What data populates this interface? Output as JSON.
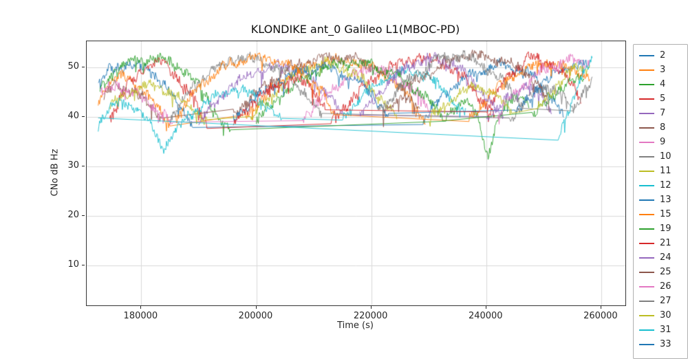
{
  "chart_data": {
    "type": "line",
    "title": "KLONDIKE ant_0 Galileo L1(MBOC-PD)",
    "xlabel": "Time (s)",
    "ylabel": "CNo dB Hz",
    "xlim": [
      170500,
      264200
    ],
    "ylim": [
      1.9,
      55.3
    ],
    "xticks": [
      180000,
      200000,
      220000,
      240000,
      260000
    ],
    "yticks": [
      10,
      20,
      30,
      40,
      50
    ],
    "grid": true,
    "legend_position": "right",
    "series": [
      {
        "name": "2",
        "color": "#1f77b4",
        "arcs": [
          [
            [
              172500,
              46.5
            ],
            [
              174500,
              49.5
            ],
            [
              178000,
              50.8
            ],
            [
              181500,
              49.5
            ],
            [
              185000,
              45
            ],
            [
              187500,
              41
            ],
            [
              189000,
              38.5
            ]
          ],
          [
            [
              229000,
              39
            ],
            [
              233000,
              45
            ],
            [
              238000,
              49
            ],
            [
              243000,
              50.5
            ],
            [
              248000,
              48.5
            ],
            [
              251500,
              44
            ],
            [
              253500,
              40
            ]
          ]
        ]
      },
      {
        "name": "3",
        "color": "#ff7f0e",
        "arcs": [
          [
            [
              172500,
              43.5
            ],
            [
              174500,
              47
            ],
            [
              177000,
              48.2
            ],
            [
              179500,
              46.5
            ],
            [
              182500,
              42.5
            ],
            [
              185000,
              39
            ]
          ],
          [
            [
              198000,
              40
            ],
            [
              203000,
              46
            ],
            [
              208000,
              50
            ],
            [
              213000,
              51.5
            ],
            [
              218000,
              51
            ],
            [
              223000,
              48
            ],
            [
              227000,
              43.5
            ],
            [
              229500,
              39.5
            ]
          ]
        ]
      },
      {
        "name": "4",
        "color": "#2ca02c",
        "arcs": [
          [
            [
              172800,
              45.5
            ],
            [
              175000,
              49
            ],
            [
              178500,
              51.5
            ],
            [
              183000,
              52
            ],
            [
              187000,
              50
            ],
            [
              191000,
              45
            ],
            [
              194000,
              39
            ],
            [
              195500,
              36.5
            ]
          ],
          [
            [
              233000,
              39.5
            ],
            [
              236500,
              44
            ],
            [
              238500,
              40
            ],
            [
              240300,
              31.5
            ],
            [
              241500,
              38
            ],
            [
              243500,
              42.5
            ],
            [
              246000,
              44
            ],
            [
              247500,
              43
            ]
          ]
        ]
      },
      {
        "name": "5",
        "color": "#d62728",
        "arcs": [
          [
            [
              174500,
              40
            ],
            [
              177500,
              46
            ],
            [
              180500,
              50
            ],
            [
              183500,
              51.2
            ],
            [
              186500,
              48
            ],
            [
              189500,
              43
            ],
            [
              191500,
              38.5
            ]
          ],
          [
            [
              213000,
              39
            ],
            [
              218000,
              45.5
            ],
            [
              223000,
              50
            ],
            [
              228000,
              52
            ],
            [
              232500,
              51
            ],
            [
              236500,
              47.5
            ],
            [
              239500,
              43
            ],
            [
              241500,
              39.5
            ]
          ]
        ]
      },
      {
        "name": "7",
        "color": "#9467bd",
        "arcs": [
          [
            [
              190000,
              39
            ],
            [
              194500,
              45
            ],
            [
              199500,
              49
            ],
            [
              204500,
              50.5
            ],
            [
              208500,
              49
            ],
            [
              212500,
              44.5
            ],
            [
              215500,
              39.5
            ]
          ],
          [
            [
              240000,
              39.5
            ],
            [
              244000,
              44
            ],
            [
              247000,
              46.5
            ],
            [
              249500,
              44.5
            ],
            [
              251500,
              41
            ]
          ]
        ]
      },
      {
        "name": "8",
        "color": "#8c564b",
        "arcs": [
          [
            [
              173500,
              44
            ],
            [
              175500,
              46.5
            ],
            [
              178500,
              45.5
            ],
            [
              181500,
              42.5
            ],
            [
              183500,
              40
            ]
          ],
          [
            [
              196000,
              40.5
            ],
            [
              201000,
              46
            ],
            [
              206000,
              50
            ],
            [
              211000,
              52
            ],
            [
              216000,
              52
            ],
            [
              221000,
              50
            ],
            [
              225500,
              46
            ],
            [
              228500,
              41
            ]
          ]
        ]
      },
      {
        "name": "9",
        "color": "#e377c2",
        "arcs": [
          [
            [
              173000,
              45
            ],
            [
              176000,
              46.5
            ],
            [
              180000,
              44
            ],
            [
              183500,
              41
            ],
            [
              185500,
              38.5
            ]
          ],
          [
            [
              208000,
              39.5
            ],
            [
              212000,
              44.5
            ],
            [
              216000,
              48
            ],
            [
              220000,
              50
            ],
            [
              224000,
              49
            ],
            [
              227500,
              45.5
            ],
            [
              230500,
              40.5
            ]
          ]
        ]
      },
      {
        "name": "10",
        "color": "#7f7f7f",
        "arcs": [
          [
            [
              185000,
              40
            ],
            [
              189000,
              46
            ],
            [
              193000,
              50
            ],
            [
              197000,
              52
            ],
            [
              201000,
              51.5
            ],
            [
              205000,
              49
            ],
            [
              208500,
              45
            ],
            [
              211500,
              40
            ]
          ],
          [
            [
              244000,
              39.5
            ],
            [
              247500,
              44
            ],
            [
              250500,
              46.5
            ],
            [
              253000,
              44.5
            ],
            [
              255500,
              41
            ]
          ]
        ]
      },
      {
        "name": "11",
        "color": "#bcbd22",
        "arcs": [
          [
            [
              174500,
              42
            ],
            [
              177500,
              45
            ],
            [
              181000,
              46.5
            ],
            [
              185000,
              45
            ],
            [
              188500,
              42
            ],
            [
              191500,
              39
            ]
          ],
          [
            [
              199000,
              40
            ],
            [
              203000,
              45
            ],
            [
              207000,
              49
            ],
            [
              211000,
              51
            ],
            [
              215000,
              50
            ],
            [
              219000,
              47
            ],
            [
              222500,
              42.5
            ],
            [
              224500,
              39.5
            ]
          ]
        ]
      },
      {
        "name": "12",
        "color": "#17becf",
        "arcs": [
          [
            [
              172500,
              38.5
            ],
            [
              174000,
              41
            ],
            [
              176500,
              43
            ],
            [
              179000,
              42
            ],
            [
              181500,
              38.5
            ],
            [
              183800,
              33.5
            ],
            [
              185000,
              35.5
            ],
            [
              188000,
              40
            ],
            [
              192000,
              43.5
            ],
            [
              196000,
              45.5
            ],
            [
              199500,
              44.5
            ],
            [
              202500,
              41.5
            ],
            [
              204500,
              39
            ]
          ],
          [
            [
              215000,
              40
            ],
            [
              219000,
              45
            ],
            [
              223000,
              48
            ],
            [
              226500,
              49.5
            ],
            [
              230000,
              48
            ],
            [
              233500,
              44.5
            ],
            [
              236500,
              40
            ]
          ]
        ]
      },
      {
        "name": "13",
        "color": "#1f77b4",
        "arcs": [
          [
            [
              196000,
              39.5
            ],
            [
              200000,
              44
            ],
            [
              205000,
              48
            ],
            [
              210000,
              50
            ],
            [
              214000,
              49.5
            ],
            [
              218000,
              47
            ],
            [
              221000,
              43.5
            ],
            [
              223000,
              40
            ]
          ],
          [
            [
              245000,
              40.5
            ],
            [
              249000,
              46
            ],
            [
              253000,
              49.5
            ],
            [
              257500,
              51
            ]
          ]
        ]
      },
      {
        "name": "15",
        "color": "#ff7f0e",
        "arcs": [
          [
            [
              186000,
              40
            ],
            [
              190000,
              46
            ],
            [
              194000,
              50
            ],
            [
              199000,
              52
            ],
            [
              204000,
              51.5
            ],
            [
              208000,
              49
            ],
            [
              211500,
              45
            ],
            [
              213500,
              40
            ]
          ],
          [
            [
              237000,
              39.5
            ],
            [
              241000,
              45
            ],
            [
              245000,
              49
            ],
            [
              250000,
              51
            ],
            [
              254500,
              50
            ],
            [
              258000,
              48
            ]
          ]
        ]
      },
      {
        "name": "19",
        "color": "#2ca02c",
        "arcs": [
          [
            [
              200000,
              39.5
            ],
            [
              205000,
              45
            ],
            [
              210000,
              49
            ],
            [
              215000,
              51
            ],
            [
              220000,
              50.5
            ],
            [
              225000,
              48
            ],
            [
              229500,
              44
            ],
            [
              232500,
              40
            ]
          ],
          [
            [
              248000,
              40
            ],
            [
              251500,
              44.5
            ],
            [
              254500,
              47
            ],
            [
              257000,
              48
            ]
          ]
        ]
      },
      {
        "name": "21",
        "color": "#d62728",
        "arcs": [
          [
            [
              196000,
              38.5
            ],
            [
              199500,
              43
            ],
            [
              203500,
              46.5
            ],
            [
              206500,
              48
            ],
            [
              209500,
              46
            ],
            [
              212000,
              42
            ]
          ],
          [
            [
              240000,
              41
            ],
            [
              243500,
              48
            ],
            [
              247500,
              52
            ],
            [
              251500,
              51
            ],
            [
              254500,
              47
            ],
            [
              256500,
              44
            ]
          ]
        ]
      },
      {
        "name": "24",
        "color": "#9467bd",
        "arcs": [
          [
            [
              218000,
              40
            ],
            [
              222000,
              46
            ],
            [
              226000,
              50
            ],
            [
              230000,
              52
            ],
            [
              234000,
              51
            ],
            [
              238000,
              47
            ],
            [
              241000,
              42.5
            ],
            [
              243000,
              39.5
            ]
          ]
        ]
      },
      {
        "name": "25",
        "color": "#8c564b",
        "arcs": [
          [
            [
              222000,
              40.5
            ],
            [
              227000,
              46.5
            ],
            [
              232000,
              50.5
            ],
            [
              236000,
              52.5
            ],
            [
              241000,
              52
            ],
            [
              246000,
              50
            ],
            [
              249000,
              46.5
            ],
            [
              251000,
              42.5
            ]
          ]
        ]
      },
      {
        "name": "26",
        "color": "#e377c2",
        "arcs": [
          [
            [
              242000,
              40.5
            ],
            [
              246000,
              46
            ],
            [
              250000,
              49.5
            ],
            [
              254000,
              51.5
            ],
            [
              258000,
              51
            ]
          ]
        ]
      },
      {
        "name": "27",
        "color": "#7f7f7f",
        "arcs": [
          [
            [
              221000,
              41
            ],
            [
              226000,
              47
            ],
            [
              231000,
              51.5
            ],
            [
              235500,
              52.5
            ],
            [
              239500,
              50.5
            ],
            [
              243500,
              46.5
            ],
            [
              246500,
              42
            ]
          ],
          [
            [
              255000,
              41.5
            ],
            [
              257000,
              45
            ],
            [
              258500,
              47
            ]
          ]
        ]
      },
      {
        "name": "30",
        "color": "#bcbd22",
        "arcs": [
          [
            [
              230000,
              39.5
            ],
            [
              234500,
              44
            ],
            [
              238500,
              46.5
            ],
            [
              241500,
              44.5
            ],
            [
              244500,
              41
            ]
          ],
          [
            [
              249000,
              41.5
            ],
            [
              252000,
              46
            ],
            [
              255000,
              49.5
            ],
            [
              258000,
              50.5
            ]
          ]
        ]
      },
      {
        "name": "31",
        "color": "#17becf",
        "arcs": [
          [
            [
              172500,
              39.8
            ],
            [
              252500,
              35.3
            ]
          ],
          [
            [
              252800,
              36.5
            ],
            [
              254300,
              41.5
            ],
            [
              255800,
              46
            ],
            [
              257200,
              49.5
            ],
            [
              258500,
              51.2
            ]
          ]
        ]
      },
      {
        "name": "33",
        "color": "#1f77b4",
        "arcs": []
      }
    ]
  }
}
